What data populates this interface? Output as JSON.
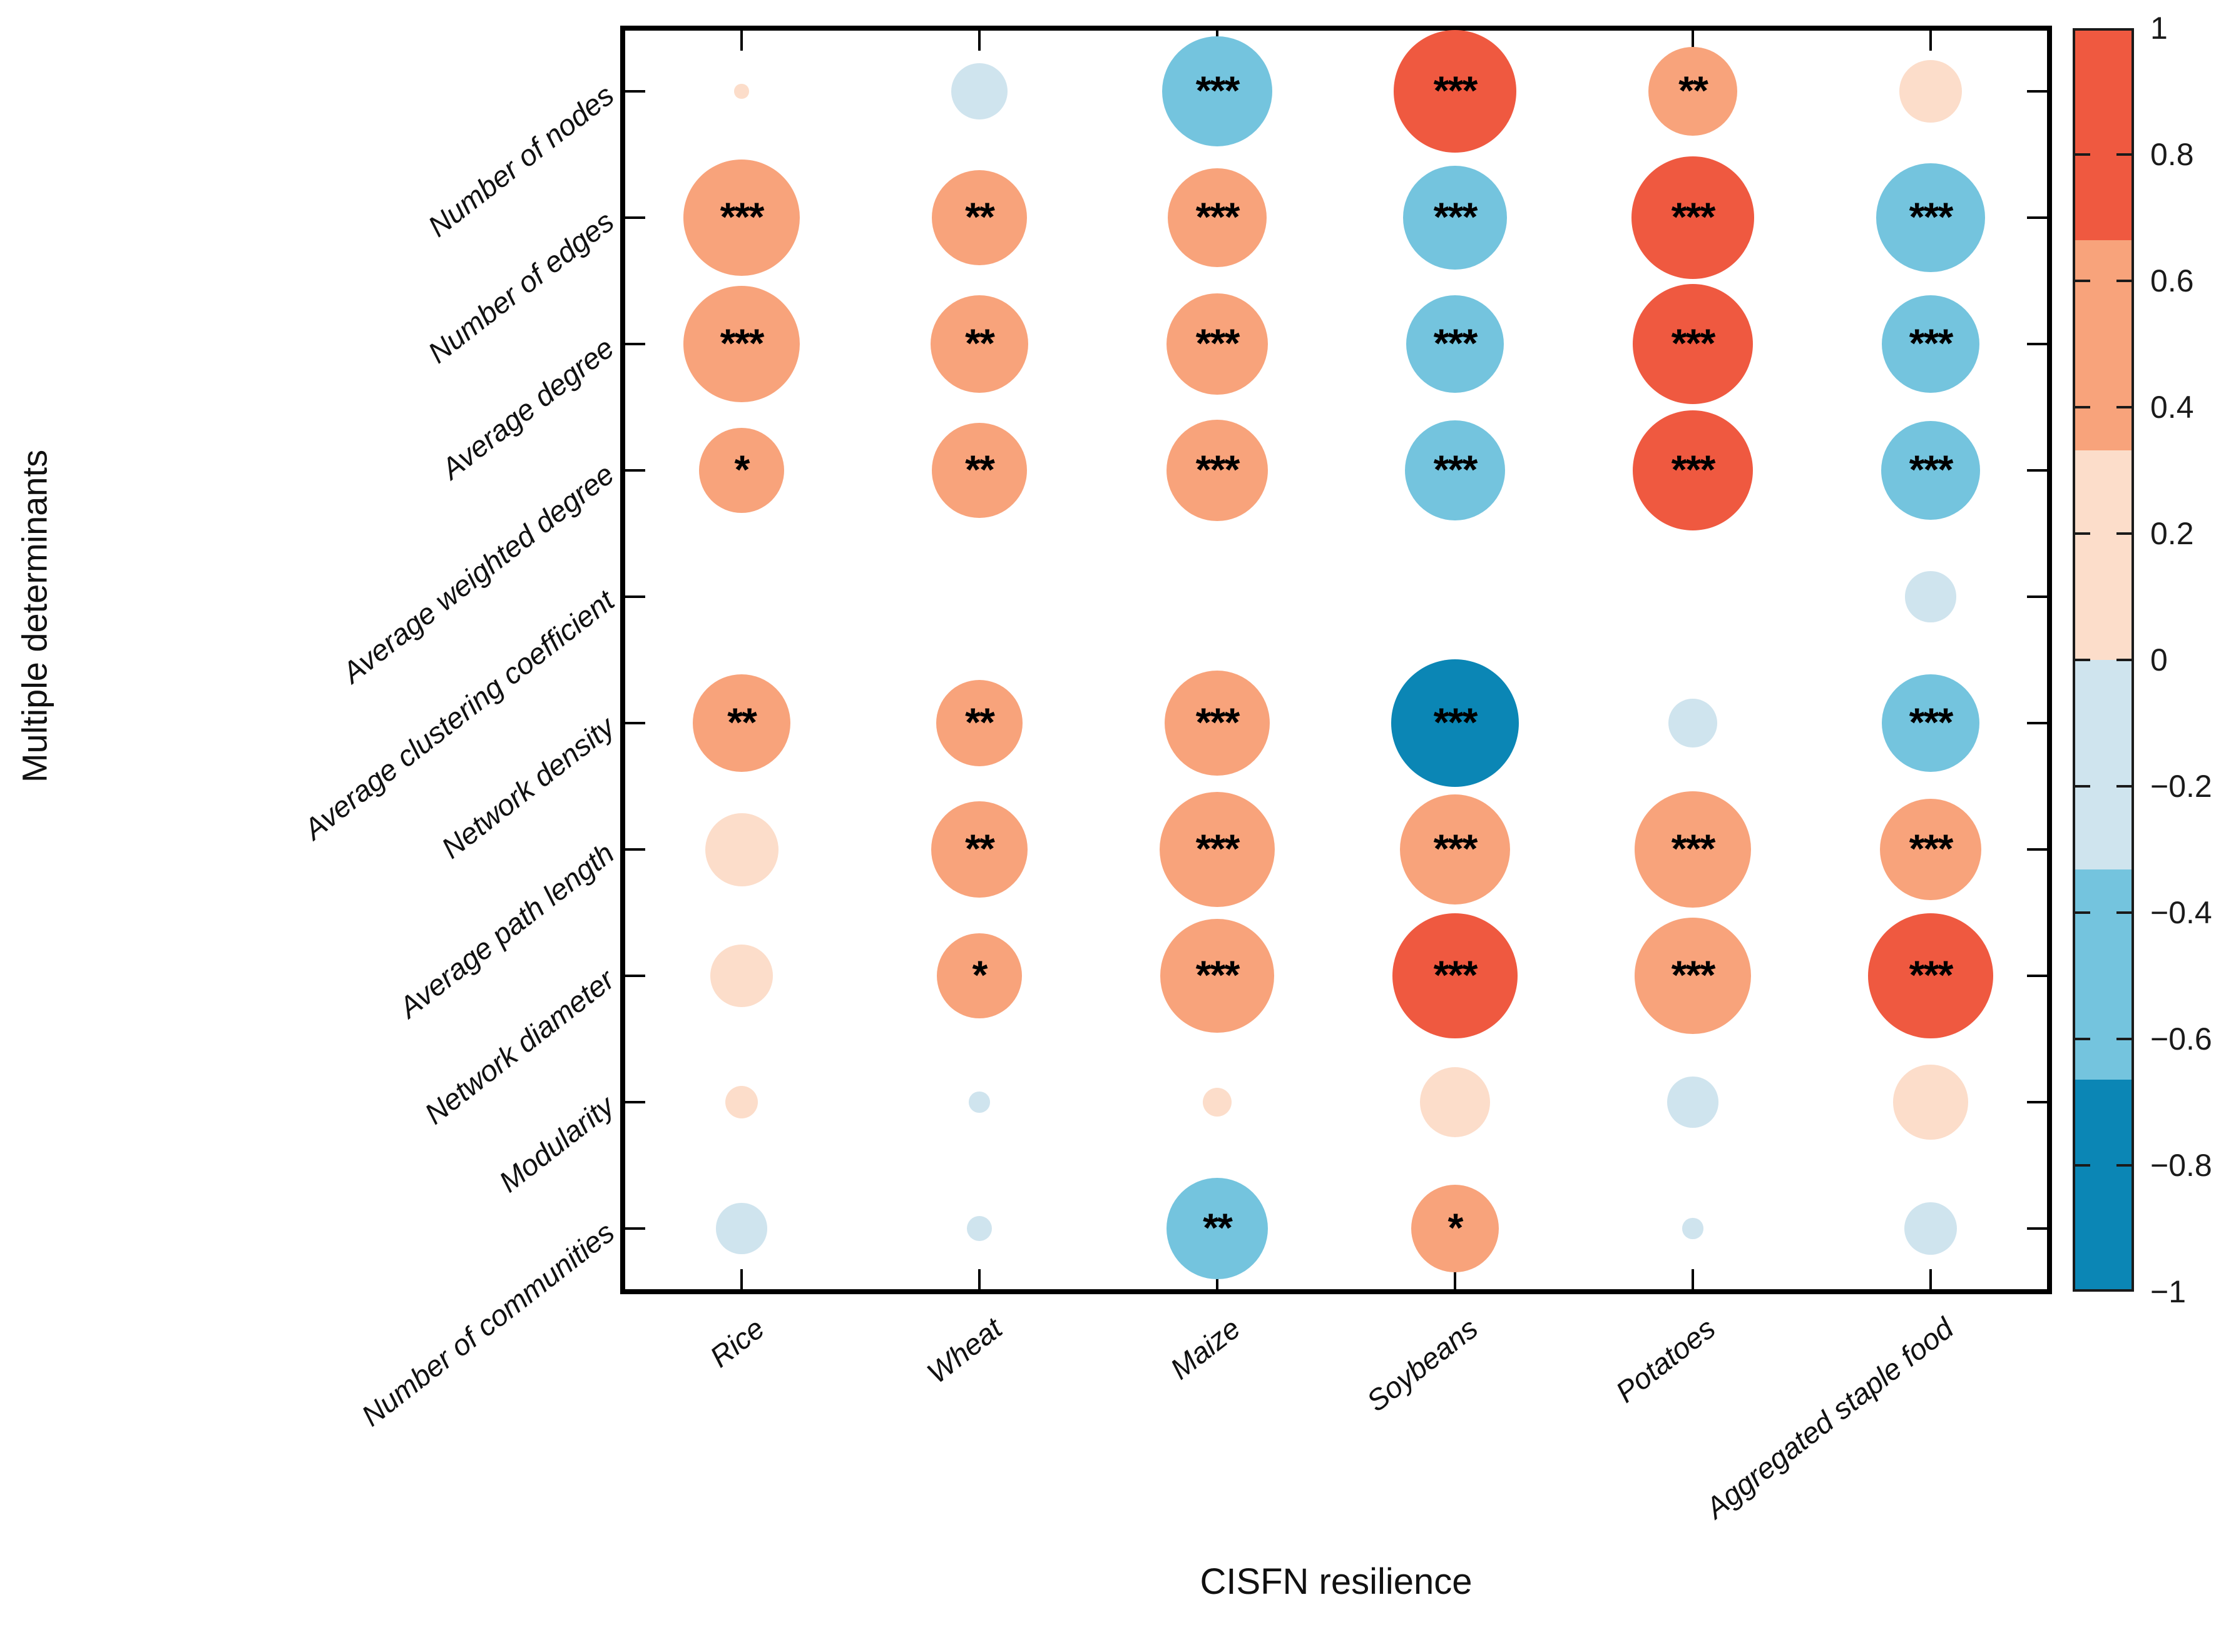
{
  "chart_data": {
    "type": "scatter",
    "subtype": "correlation-bubble-matrix",
    "title": "",
    "xlabel": "CISFN resilience",
    "ylabel": "Multiple determinants",
    "x_categories": [
      "Rice",
      "Wheat",
      "Maize",
      "Soybeans",
      "Potatoes",
      "Aggregated staple food"
    ],
    "y_categories": [
      "Number of nodes",
      "Number of edges",
      "Average degree",
      "Average weighted degree",
      "Average clustering coefficient",
      "Network density",
      "Average path length",
      "Network diameter",
      "Modularity",
      "Number of communities"
    ],
    "cells": [
      {
        "determinant": "Number of nodes",
        "values": [
          0.01,
          -0.15,
          -0.57,
          0.7,
          0.37,
          0.18
        ],
        "significance": [
          "",
          "",
          "***",
          "***",
          "**",
          ""
        ]
      },
      {
        "determinant": "Number of edges",
        "values": [
          0.63,
          0.42,
          0.46,
          -0.5,
          0.7,
          -0.55
        ],
        "significance": [
          "***",
          "**",
          "***",
          "***",
          "***",
          "***"
        ]
      },
      {
        "determinant": "Average degree",
        "values": [
          0.63,
          0.45,
          0.48,
          -0.45,
          0.68,
          -0.45
        ],
        "significance": [
          "***",
          "**",
          "***",
          "***",
          "***",
          "***"
        ]
      },
      {
        "determinant": "Average weighted degree",
        "values": [
          0.34,
          0.42,
          0.48,
          -0.47,
          0.68,
          -0.46
        ],
        "significance": [
          "*",
          "**",
          "***",
          "***",
          "***",
          "***"
        ]
      },
      {
        "determinant": "Average clustering coefficient",
        "values": [
          0,
          0,
          0,
          0,
          0,
          -0.12
        ],
        "significance": [
          "",
          "",
          "",
          "",
          "",
          ""
        ]
      },
      {
        "determinant": "Network density",
        "values": [
          0.45,
          0.35,
          0.52,
          -0.76,
          -0.11,
          -0.45
        ],
        "significance": [
          "**",
          "**",
          "***",
          "***",
          "",
          "***"
        ]
      },
      {
        "determinant": "Average path length",
        "values": [
          0.25,
          0.43,
          0.62,
          0.57,
          0.63,
          0.48
        ],
        "significance": [
          "",
          "**",
          "***",
          "***",
          "***",
          "***"
        ]
      },
      {
        "determinant": "Network diameter",
        "values": [
          0.18,
          0.34,
          0.6,
          0.73,
          0.63,
          0.73
        ],
        "significance": [
          "",
          "*",
          "***",
          "***",
          "***",
          "***"
        ]
      },
      {
        "determinant": "Modularity",
        "values": [
          0.05,
          -0.02,
          0.04,
          0.23,
          -0.12,
          0.26
        ],
        "significance": [
          "",
          "",
          "",
          "",
          "",
          ""
        ]
      },
      {
        "determinant": "Number of communities",
        "values": [
          -0.12,
          -0.03,
          -0.48,
          0.36,
          -0.02,
          -0.13
        ],
        "significance": [
          "",
          "",
          "**",
          "*",
          "",
          ""
        ]
      }
    ],
    "colorbar": {
      "min": -1,
      "max": 1,
      "tick_labels": [
        "1",
        "0.8",
        "0.6",
        "0.4",
        "0.2",
        "0",
        "−0.2",
        "−0.4",
        "−0.6",
        "−0.8",
        "−1"
      ],
      "band_breaks": [
        1,
        0.667,
        0.333,
        0,
        -0.333,
        -0.667,
        -1
      ],
      "band_colors": [
        "#ef5940",
        "#f8a37b",
        "#fcddca",
        "#cfe4ee",
        "#74c4de",
        "#0b86b5"
      ],
      "position": "right"
    },
    "size_encoding": "circle area proportional to |correlation|",
    "grid": false,
    "axis_color": "#000000",
    "text_color": "#1a1a1a"
  }
}
